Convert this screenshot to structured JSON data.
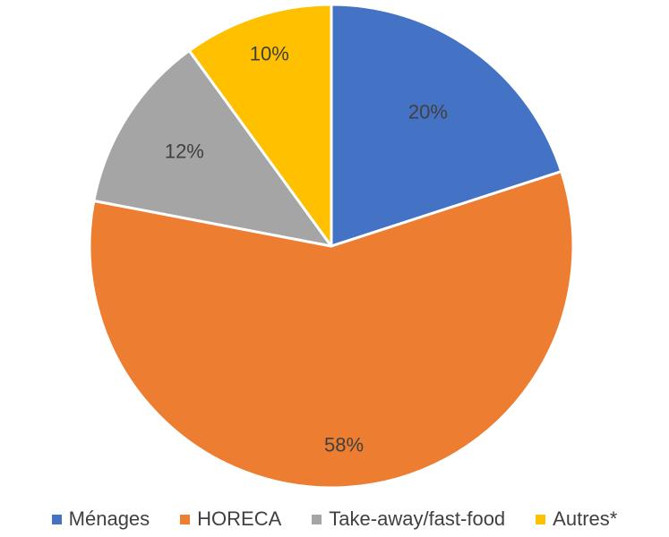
{
  "chart_data": {
    "type": "pie",
    "categories": [
      "Ménages",
      "HORECA",
      "Take-away/fast-food",
      "Autres*"
    ],
    "values": [
      20,
      58,
      12,
      10
    ],
    "labels": [
      "20%",
      "58%",
      "12%",
      "10%"
    ],
    "colors": [
      "#4472C4",
      "#ED7D31",
      "#A5A5A5",
      "#FFC000"
    ],
    "start_angle_deg": 0,
    "direction": "clockwise",
    "legend": "bottom",
    "title": ""
  }
}
